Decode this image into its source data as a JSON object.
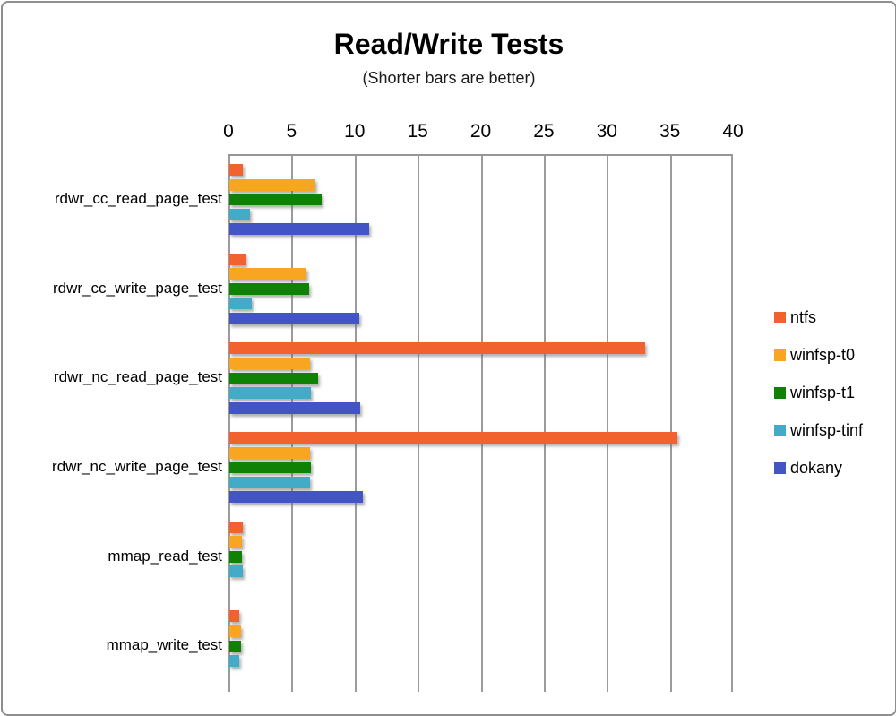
{
  "window": {
    "background_color": "#ffffff",
    "border_color": "#8e8e8e"
  },
  "chart_data": {
    "type": "bar",
    "orientation": "horizontal",
    "title": "Read/Write Tests",
    "subtitle": "(Shorter bars are better)",
    "value_axis": {
      "position": "top",
      "min": 0,
      "max": 40,
      "tick_interval": 5,
      "ticks": [
        0,
        5,
        10,
        15,
        20,
        25,
        30,
        35,
        40
      ]
    },
    "grid": "vertical",
    "gridline_color": "#9b9b9b",
    "legend_position": "right",
    "categories": [
      "rdwr_cc_read_page_test",
      "rdwr_cc_write_page_test",
      "rdwr_nc_read_page_test",
      "rdwr_nc_write_page_test",
      "mmap_read_test",
      "mmap_write_test"
    ],
    "series": [
      {
        "name": "ntfs",
        "color": "#F1622F",
        "values": [
          1.1,
          1.3,
          33.0,
          35.5,
          1.1,
          0.8
        ]
      },
      {
        "name": "winfsp-t0",
        "color": "#F8A622",
        "values": [
          6.8,
          6.1,
          6.4,
          6.4,
          1.0,
          0.9
        ]
      },
      {
        "name": "winfsp-t1",
        "color": "#0F8206",
        "values": [
          7.3,
          6.3,
          7.0,
          6.5,
          1.0,
          0.9
        ]
      },
      {
        "name": "winfsp-tinf",
        "color": "#42ABC8",
        "values": [
          1.6,
          1.8,
          6.5,
          6.4,
          1.1,
          0.8
        ]
      },
      {
        "name": "dokany",
        "color": "#4355C4",
        "values": [
          11.1,
          10.3,
          10.4,
          10.6,
          0,
          0
        ]
      }
    ]
  }
}
